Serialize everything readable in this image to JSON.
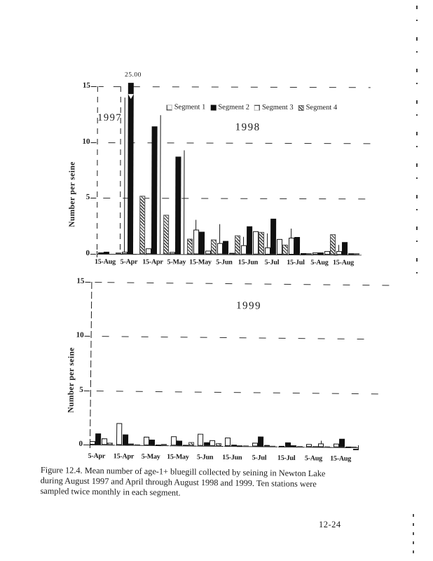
{
  "page": {
    "background": "#ffffff",
    "ink_color": "#1a1a1a",
    "footer_page_number": "12-24"
  },
  "caption": {
    "text": "Figure 12.4.  Mean number of age-1+ bluegill collected by seining in Newton Lake\nduring August 1997 and April through August 1998 and 1999.  Ten stations were\nsampled twice monthly in each segment."
  },
  "chart_data": [
    {
      "type": "bar",
      "id": "bluegill-1997-1998",
      "year_labels": [
        "1997",
        "1998"
      ],
      "ylabel": "Number per seine",
      "yticks": [
        0,
        5,
        10,
        15
      ],
      "ylim": [
        0,
        15
      ],
      "grid": "dashed-horizontal",
      "legend_position": "top-center",
      "legend": [
        "Segment 1",
        "Segment 2",
        "Segment 3",
        "Segment 4"
      ],
      "clipped_bar_label": "25.00",
      "clipped_bar": {
        "category": "5-Apr",
        "series": "Segment 2",
        "value": 25.0
      },
      "categories": [
        "15-Aug",
        "5-Apr",
        "15-Apr",
        "5-May",
        "15-May",
        "5-Jun",
        "15-Jun",
        "5-Jul",
        "15-Jul",
        "5-Aug",
        "15-Aug"
      ],
      "series": [
        {
          "name": "Segment 1",
          "style": "open-white",
          "values": [
            0.1,
            0.2,
            0.5,
            0.2,
            2.2,
            1.0,
            0.8,
            0.6,
            1.5,
            0.2,
            0.3
          ]
        },
        {
          "name": "Segment 2",
          "style": "solid-black",
          "values": [
            0.2,
            25.0,
            11.4,
            8.7,
            2.0,
            1.2,
            2.5,
            3.2,
            1.6,
            0.2,
            1.1
          ]
        },
        {
          "name": "Segment 3",
          "style": "open-white",
          "values": [
            0,
            0,
            0,
            0,
            0.3,
            0.1,
            2.1,
            1.4,
            0.1,
            0.3,
            0.1
          ]
        },
        {
          "name": "Segment 4",
          "style": "hatched-gray",
          "values": [
            0.1,
            5.2,
            3.5,
            1.4,
            1.3,
            1.7,
            2.0,
            0.9,
            0.1,
            1.8,
            0.1
          ]
        }
      ],
      "error_whiskers": [
        {
          "category_index": 1,
          "series_index": 0,
          "top": 14.0
        },
        {
          "category_index": 2,
          "series_index": 2,
          "top": 12.4
        },
        {
          "category_index": 3,
          "series_index": 2,
          "top": 9.3
        },
        {
          "category_index": 4,
          "series_index": 0,
          "top": 3.1
        },
        {
          "category_index": 5,
          "series_index": 0,
          "top": 2.7
        },
        {
          "category_index": 6,
          "series_index": 0,
          "top": 1.6
        },
        {
          "category_index": 7,
          "series_index": 0,
          "top": 1.9
        },
        {
          "category_index": 8,
          "series_index": 0,
          "top": 2.3
        },
        {
          "category_index": 10,
          "series_index": 0,
          "top": 0.9
        }
      ]
    },
    {
      "type": "bar",
      "id": "bluegill-1999",
      "year_labels": [
        "1999"
      ],
      "ylabel": "Number per seine",
      "yticks": [
        0,
        5,
        10,
        15
      ],
      "ylim": [
        0,
        15
      ],
      "grid": "dashed-horizontal",
      "legend": [],
      "categories": [
        "5-Apr",
        "15-Apr",
        "5-May",
        "15-May",
        "5-Jun",
        "15-Jun",
        "5-Jul",
        "15-Jul",
        "5-Aug",
        "15-Aug"
      ],
      "series": [
        {
          "name": "Segment 1",
          "style": "open-white",
          "values": [
            0.35,
            2.0,
            0.8,
            0.85,
            1.1,
            0.75,
            0.3,
            0.05,
            0.25,
            0.3
          ]
        },
        {
          "name": "Segment 2",
          "style": "solid-black",
          "values": [
            1.05,
            1.0,
            0.5,
            0.45,
            0.3,
            0.15,
            0.9,
            0.4,
            0.05,
            0.75
          ]
        },
        {
          "name": "Segment 3",
          "style": "open-white",
          "values": [
            0.6,
            0.1,
            0.05,
            0.05,
            0.5,
            0.05,
            0.1,
            0.1,
            0.35,
            0.05
          ]
        },
        {
          "name": "Segment 4",
          "style": "hatched-gray",
          "values": [
            0.2,
            0.05,
            0.1,
            0.3,
            0.25,
            0.05,
            0.05,
            0.05,
            0.05,
            0.05
          ]
        }
      ],
      "error_whiskers": [
        {
          "category_index": 8,
          "series_index": 2,
          "top": 0.6
        }
      ]
    }
  ]
}
